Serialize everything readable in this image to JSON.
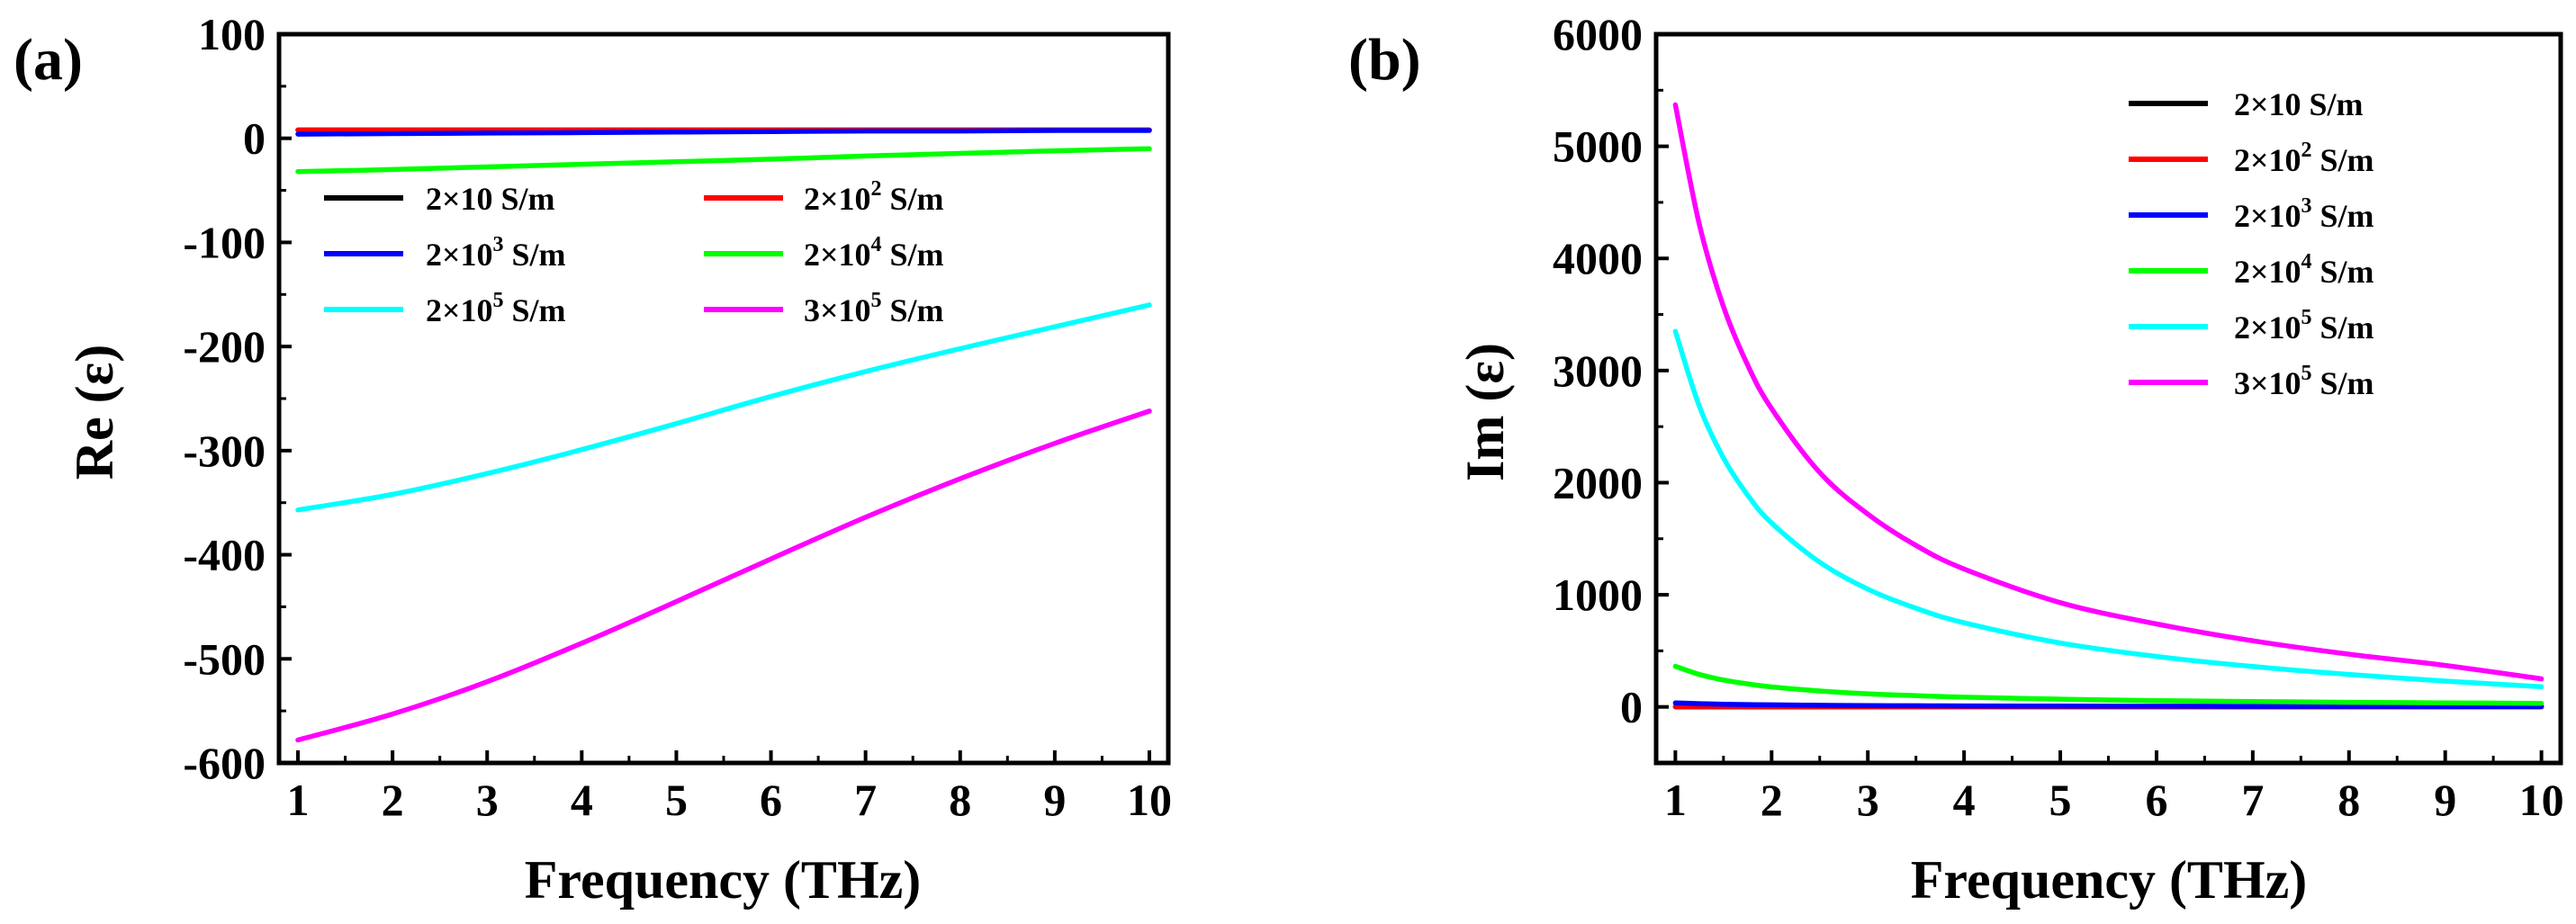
{
  "chart_data": [
    {
      "panel_label": "(a)",
      "type": "line",
      "xlabel": "Frequency (THz)",
      "ylabel": "Re (ε)",
      "xlim": [
        0.8,
        10.2
      ],
      "ylim": [
        -600,
        100
      ],
      "xticks": [
        1,
        2,
        3,
        4,
        5,
        6,
        7,
        8,
        9,
        10
      ],
      "yticks": [
        100,
        0,
        -100,
        -200,
        -300,
        -400,
        -500,
        -600
      ],
      "ytick_labels": [
        "100",
        "0",
        "-100",
        "-200",
        "-300",
        "-400",
        "-500",
        "-600"
      ],
      "x": [
        1,
        2,
        3,
        4,
        5,
        6,
        7,
        8,
        9,
        10
      ],
      "series": [
        {
          "name": "2×10 S/m",
          "base": "2×10",
          "sup": "",
          "unit": " S/m",
          "color": "#000000",
          "values": [
            8,
            8,
            8,
            8,
            8,
            8,
            8,
            8,
            8,
            8
          ]
        },
        {
          "name": "2×10² S/m",
          "base": "2×10",
          "sup": "2",
          "unit": " S/m",
          "color": "#ff0000",
          "values": [
            8,
            8,
            8,
            8,
            8,
            8,
            8,
            8,
            8,
            8
          ]
        },
        {
          "name": "2×10³ S/m",
          "base": "2×10",
          "sup": "3",
          "unit": " S/m",
          "color": "#0000ff",
          "values": [
            4,
            4.5,
            5,
            5.5,
            6,
            6.5,
            7,
            7,
            7.5,
            7.5
          ]
        },
        {
          "name": "2×10⁴ S/m",
          "base": "2×10",
          "sup": "4",
          "unit": " S/m",
          "color": "#00ff00",
          "values": [
            -32,
            -30,
            -27.5,
            -25,
            -22.5,
            -20,
            -17,
            -14.5,
            -12,
            -10
          ]
        },
        {
          "name": "2×10⁵ S/m",
          "base": "2×10",
          "sup": "5",
          "unit": " S/m",
          "color": "#00ffff",
          "values": [
            -357,
            -342,
            -322,
            -299,
            -274,
            -248,
            -224,
            -202,
            -181,
            -160
          ]
        },
        {
          "name": "3×10⁵ S/m",
          "base": "3×10",
          "sup": "5",
          "unit": " S/m",
          "color": "#ff00ff",
          "values": [
            -578,
            -553,
            -522,
            -485,
            -445,
            -404,
            -364,
            -327,
            -293,
            -262
          ]
        }
      ]
    },
    {
      "panel_label": "(b)",
      "type": "line",
      "xlabel": "Frequency (THz)",
      "ylabel": "Im (ε)",
      "xlim": [
        0.8,
        10.2
      ],
      "ylim": [
        -500,
        6000
      ],
      "xticks": [
        1,
        2,
        3,
        4,
        5,
        6,
        7,
        8,
        9,
        10
      ],
      "yticks": [
        0,
        1000,
        2000,
        3000,
        4000,
        5000,
        6000
      ],
      "ytick_labels": [
        "0",
        "1000",
        "2000",
        "3000",
        "4000",
        "5000",
        "6000"
      ],
      "x": [
        1,
        1.25,
        1.5,
        1.75,
        2,
        2.5,
        3,
        3.5,
        4,
        5,
        6,
        7,
        8,
        9,
        10
      ],
      "series": [
        {
          "name": "2×10 S/m",
          "base": "2×10",
          "sup": "",
          "unit": " S/m",
          "color": "#000000",
          "values": [
            1,
            1,
            1,
            1,
            1,
            1,
            1,
            1,
            1,
            1,
            1,
            1,
            1,
            1,
            1
          ]
        },
        {
          "name": "2×10² S/m",
          "base": "2×10",
          "sup": "2",
          "unit": " S/m",
          "color": "#ff0000",
          "values": [
            3,
            3,
            2,
            2,
            2,
            1,
            1,
            1,
            1,
            1,
            1,
            1,
            0,
            0,
            0
          ]
        },
        {
          "name": "2×10³ S/m",
          "base": "2×10",
          "sup": "3",
          "unit": " S/m",
          "color": "#0000ff",
          "values": [
            36,
            29,
            24,
            21,
            18,
            14,
            12,
            10,
            9,
            7,
            6,
            5,
            5,
            4,
            4
          ]
        },
        {
          "name": "2×10⁴ S/m",
          "base": "2×10",
          "sup": "4",
          "unit": " S/m",
          "color": "#00ff00",
          "values": [
            362,
            289,
            240,
            205,
            178,
            142,
            117,
            100,
            87,
            69,
            56,
            48,
            41,
            36,
            32
          ]
        },
        {
          "name": "2×10⁵ S/m",
          "base": "2×10",
          "sup": "5",
          "unit": " S/m",
          "color": "#00ffff",
          "values": [
            3350,
            2680,
            2220,
            1890,
            1640,
            1290,
            1050,
            880,
            750,
            570,
            450,
            360,
            290,
            230,
            180
          ]
        },
        {
          "name": "3×10⁵ S/m",
          "base": "3×10",
          "sup": "5",
          "unit": " S/m",
          "color": "#ff00ff",
          "values": [
            5370,
            4300,
            3570,
            3050,
            2660,
            2090,
            1720,
            1440,
            1230,
            930,
            740,
            590,
            470,
            370,
            250
          ]
        }
      ]
    }
  ]
}
